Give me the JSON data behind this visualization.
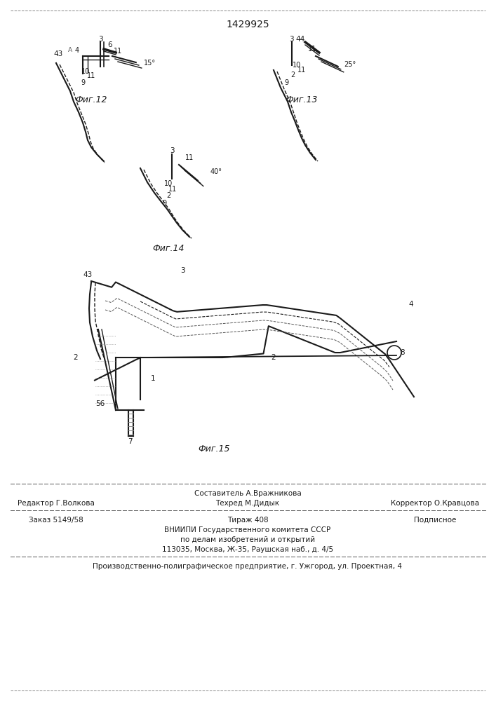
{
  "patent_number": "1429925",
  "background_color": "#ffffff",
  "line_color": "#1a1a1a",
  "fig_width": 7.07,
  "fig_height": 10.0,
  "footer": {
    "line1_left": "Редактор Г.Волкова",
    "line1_center": "Составитель А.Вражникова",
    "line1_sub": "Техред М.Дидык",
    "line1_right": "Корректор О.Кравцова",
    "line2_left": "Заказ 5149/58",
    "line2_center": "Тираж 408",
    "line2_right": "Подписное",
    "line3": "ВНИИПИ Государственного комитета СССР",
    "line4": "по делам изобретений и открытий",
    "line5": "113035, Москва, Ж-35, Раушская наб., д. 4/5",
    "line6": "Производственно-полиграфическое предприятие, г. Ужгород, ул. Проектная, 4"
  },
  "fig12_label": "Фиг.12",
  "fig13_label": "Фиг.13",
  "fig14_label": "Фиг.14",
  "fig15_label": "Фиг.15"
}
